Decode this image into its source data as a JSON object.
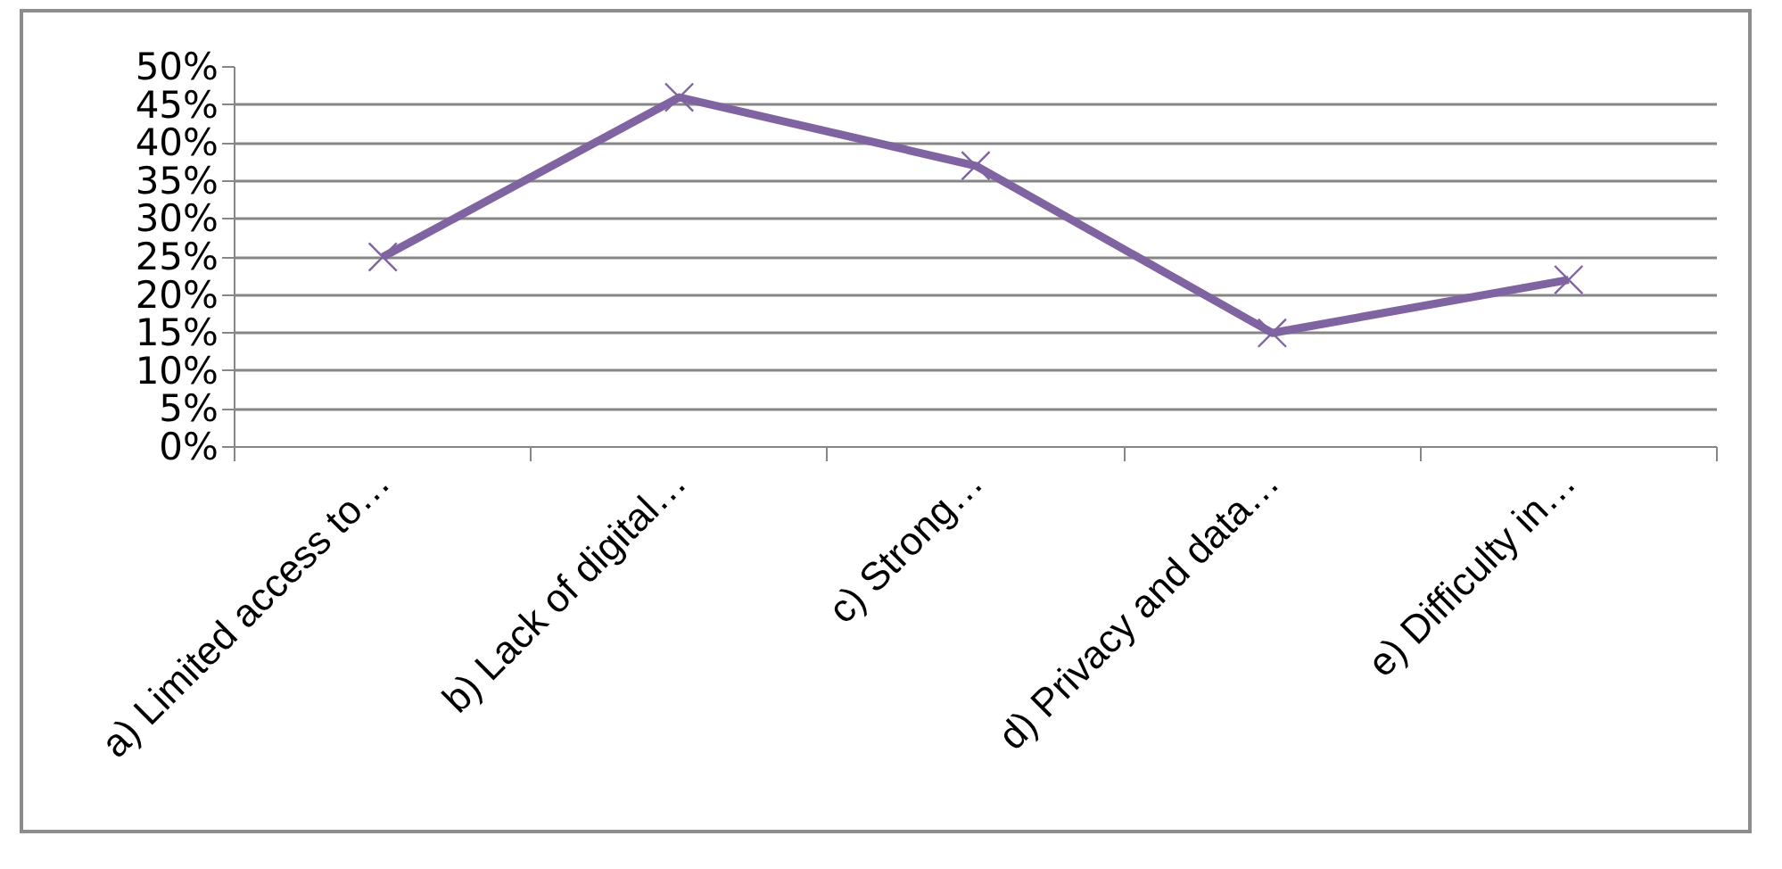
{
  "chart_data": {
    "type": "line",
    "categories": [
      "a) Limited access to…",
      "b) Lack of digital…",
      "c) Strong…",
      "d) Privacy and data…",
      "e) Difficulty in…"
    ],
    "series": [
      {
        "color": "#8064a2",
        "values": [
          25,
          46,
          37,
          15,
          22
        ]
      }
    ],
    "ylim": [
      0,
      50
    ],
    "yticks": [
      {
        "value": 0,
        "label": "0%"
      },
      {
        "value": 5,
        "label": "5%"
      },
      {
        "value": 10,
        "label": "10%"
      },
      {
        "value": 15,
        "label": "15%"
      },
      {
        "value": 20,
        "label": "20%"
      },
      {
        "value": 25,
        "label": "25%"
      },
      {
        "value": 30,
        "label": "30%"
      },
      {
        "value": 35,
        "label": "35%"
      },
      {
        "value": 40,
        "label": "40%"
      },
      {
        "value": 45,
        "label": "45%"
      },
      {
        "value": 50,
        "label": "50%"
      }
    ],
    "grid": "y",
    "marker": "cross",
    "line_style": "solid"
  }
}
